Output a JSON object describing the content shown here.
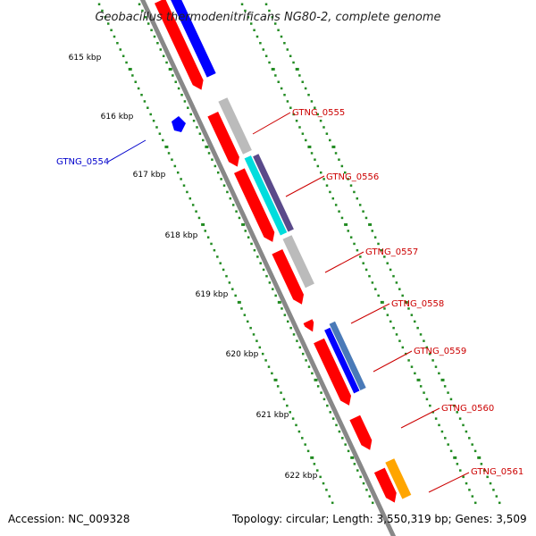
{
  "title": "Geobacillus thermodenitrificans NG80-2, complete genome",
  "footer": {
    "accession": "Accession: NC_009328",
    "topology": "Topology: circular; Length: 3,550,319 bp; Genes: 3,509"
  },
  "ticks": [
    "615 kbp",
    "616 kbp",
    "617 kbp",
    "618 kbp",
    "619 kbp",
    "620 kbp",
    "621 kbp",
    "622 kbp"
  ],
  "gene_labels": [
    {
      "id": "GTNG_0554",
      "color": "#0000cc"
    },
    {
      "id": "GTNG_0555",
      "color": "#cc0000"
    },
    {
      "id": "GTNG_0556",
      "color": "#cc0000"
    },
    {
      "id": "GTNG_0557",
      "color": "#cc0000"
    },
    {
      "id": "GTNG_0558",
      "color": "#cc0000"
    },
    {
      "id": "GTNG_0559",
      "color": "#cc0000"
    },
    {
      "id": "GTNG_0560",
      "color": "#cc0000"
    },
    {
      "id": "GTNG_0561",
      "color": "#cc0000"
    }
  ],
  "colors": {
    "forward_gene": "#ff0000",
    "reverse_gene": "#0000ff",
    "backbone": "#888888",
    "tick_dots": "#228b22",
    "cog_gray": "#bbbbbb",
    "cog_cyan": "#00dddd",
    "cog_purple": "#5a4a8a",
    "cog_orange": "#ffa500",
    "cog_steelblue": "#4a7ab8"
  }
}
